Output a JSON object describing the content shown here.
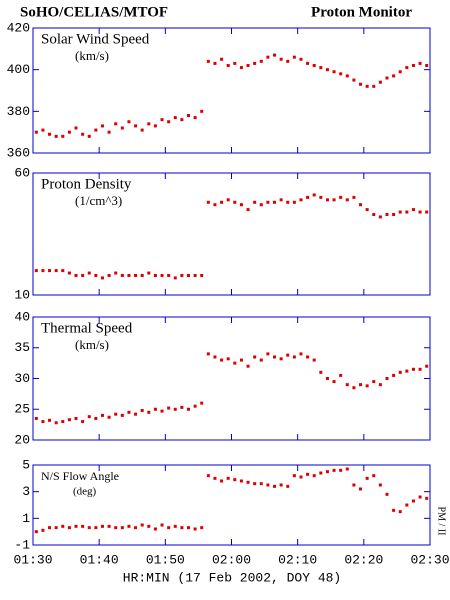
{
  "title_left": "SoHO/CELIAS/MTOF",
  "title_right": "Proton Monitor",
  "side_label": "PM / II",
  "x_axis": {
    "label": "HR:MIN (17 Feb 2002, DOY 48)",
    "xlim": [
      90,
      150
    ],
    "xticks": [
      {
        "value": 90,
        "label": "01:30"
      },
      {
        "value": 100,
        "label": "01:40"
      },
      {
        "value": 110,
        "label": "01:50"
      },
      {
        "value": 120,
        "label": "02:00"
      },
      {
        "value": 130,
        "label": "02:10"
      },
      {
        "value": 140,
        "label": "02:20"
      },
      {
        "value": 150,
        "label": "02:30"
      }
    ],
    "x": [
      90.5,
      91.5,
      92.5,
      93.5,
      94.5,
      95.5,
      96.5,
      97.5,
      98.5,
      99.5,
      100.5,
      101.5,
      102.5,
      103.5,
      104.5,
      105.5,
      106.5,
      107.5,
      108.5,
      109.5,
      110.5,
      111.5,
      112.5,
      113.5,
      114.5,
      115.5,
      116.5,
      117.5,
      118.5,
      119.5,
      120.5,
      121.5,
      122.5,
      123.5,
      124.5,
      125.5,
      126.5,
      127.5,
      128.5,
      129.5,
      130.5,
      131.5,
      132.5,
      133.5,
      134.5,
      135.5,
      136.5,
      137.5,
      138.5,
      139.5,
      140.5,
      141.5,
      142.5,
      143.5,
      144.5,
      145.5,
      146.5,
      147.5,
      148.5,
      149.5
    ]
  },
  "chart_data": [
    {
      "type": "scatter",
      "title": "Solar Wind Speed",
      "subtitle": "(km/s)",
      "color": "#dd0000",
      "ylim": [
        360,
        420
      ],
      "yticks": [
        360,
        380,
        400,
        420
      ],
      "values": [
        370,
        371,
        369,
        368,
        368,
        370,
        372,
        369,
        368,
        371,
        373,
        370,
        374,
        372,
        375,
        373,
        371,
        374,
        373,
        376,
        375,
        377,
        376,
        378,
        377,
        380,
        404,
        403,
        405,
        402,
        403,
        401,
        402,
        403,
        404,
        406,
        407,
        405,
        404,
        406,
        405,
        403,
        402,
        401,
        400,
        399,
        398,
        397,
        395,
        393,
        392,
        392,
        394,
        396,
        397,
        399,
        401,
        402,
        403,
        402
      ]
    },
    {
      "type": "scatter",
      "title": "Proton Density",
      "subtitle": "(1/cm^3)",
      "color": "#dd0000",
      "ylim": [
        10,
        60
      ],
      "yticks": [
        10,
        60
      ],
      "values": [
        20,
        20,
        20,
        20,
        20,
        19,
        18,
        18,
        19,
        18,
        17,
        18,
        19,
        18,
        18,
        18,
        18,
        19,
        18,
        18,
        18,
        17,
        18,
        18,
        18,
        18,
        48,
        47,
        48,
        49,
        48,
        47,
        45,
        48,
        47,
        48,
        48,
        49,
        48,
        48,
        49,
        50,
        51,
        50,
        49,
        49,
        50,
        49,
        50,
        47,
        45,
        43,
        42,
        43,
        43,
        44,
        44,
        45,
        44,
        44
      ]
    },
    {
      "type": "scatter",
      "title": "Thermal Speed",
      "subtitle": "(km/s)",
      "color": "#dd0000",
      "ylim": [
        20,
        40
      ],
      "yticks": [
        20,
        25,
        30,
        35,
        40
      ],
      "values": [
        23.5,
        23,
        23.2,
        22.8,
        23,
        23.3,
        23.5,
        23,
        23.8,
        23.5,
        24,
        23.7,
        24.2,
        24,
        24.5,
        24.2,
        24.8,
        24.5,
        25,
        24.7,
        25.2,
        25,
        25.3,
        25,
        25.5,
        26,
        34,
        33.5,
        33,
        33.2,
        32.5,
        33,
        32,
        33.5,
        33,
        34,
        33.5,
        33.2,
        33.8,
        33.5,
        34,
        33.5,
        33,
        31,
        30,
        29.5,
        30.5,
        29,
        28.5,
        29,
        28.8,
        29.5,
        29,
        30,
        30.5,
        31,
        31.2,
        31.5,
        31.5,
        32
      ]
    },
    {
      "type": "scatter",
      "title": "N/S Flow Angle",
      "subtitle": "(deg)",
      "color": "#dd0000",
      "ylim": [
        -1,
        5
      ],
      "yticks": [
        -1,
        1,
        3,
        5
      ],
      "values": [
        0,
        0.1,
        0.3,
        0.3,
        0.4,
        0.3,
        0.4,
        0.4,
        0.3,
        0.3,
        0.4,
        0.4,
        0.3,
        0.3,
        0.4,
        0.3,
        0.5,
        0.4,
        0.2,
        0.5,
        0.3,
        0.4,
        0.3,
        0.3,
        0.2,
        0.3,
        4.2,
        4,
        3.8,
        4,
        3.9,
        3.8,
        3.7,
        3.6,
        3.6,
        3.5,
        3.4,
        3.5,
        3.4,
        4.2,
        4.1,
        4.3,
        4.2,
        4.4,
        4.5,
        4.6,
        4.6,
        4.7,
        3.5,
        3.2,
        4,
        4.2,
        3.5,
        2.8,
        1.6,
        1.5,
        2,
        2.3,
        2.6,
        2.5
      ]
    }
  ]
}
